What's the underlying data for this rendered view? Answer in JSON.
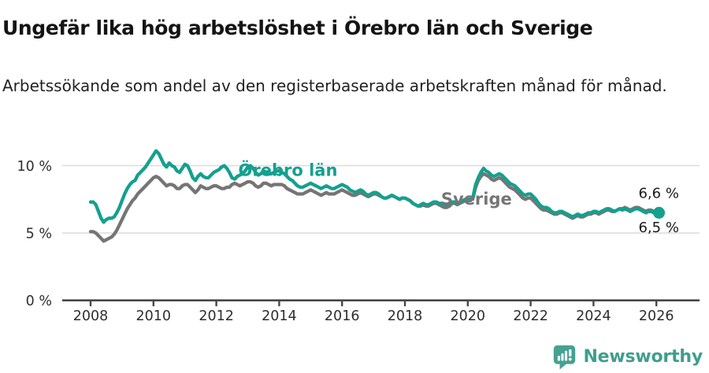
{
  "header": {
    "title": "Ungefär lika hög arbetslöshet i Örebro län och Sverige",
    "subtitle": "Arbetssökande som andel av den registerbaserade arbetskraften månad för månad."
  },
  "chart_data": {
    "type": "line",
    "title": "Ungefär lika hög arbetslöshet i Örebro län och Sverige",
    "xlabel": "",
    "ylabel": "",
    "unit": "%",
    "grid": "horizontal",
    "x_start": 2008,
    "frequency": "monthly",
    "x_start_label": "2008-01",
    "x_end_label": "2026-02",
    "ylim": [
      0,
      11.8
    ],
    "y_ticks": [
      0,
      5,
      10
    ],
    "y_tick_labels": [
      "0 %",
      "5 %",
      "10 %"
    ],
    "x_ticks": [
      2008,
      2010,
      2012,
      2014,
      2016,
      2018,
      2020,
      2022,
      2024,
      2026
    ],
    "x_tick_labels": [
      "2008",
      "2010",
      "2012",
      "2014",
      "2016",
      "2018",
      "2020",
      "2022",
      "2024",
      "2026"
    ],
    "colors": {
      "orebro": "#14a08f",
      "sverige": "#757575",
      "grid": "#dcdcdc",
      "axis": "#474747",
      "label_text": "#1a1a1a"
    },
    "series": [
      {
        "name": "Örebro län",
        "color": "#14a08f",
        "end_dot": true,
        "end_label": "6,5 %",
        "values": [
          7.3,
          7.3,
          7.1,
          6.6,
          6.1,
          5.8,
          6.0,
          6.1,
          6.1,
          6.2,
          6.5,
          6.9,
          7.4,
          7.9,
          8.3,
          8.6,
          8.8,
          8.9,
          9.3,
          9.5,
          9.7,
          9.9,
          10.2,
          10.5,
          10.8,
          11.1,
          10.9,
          10.5,
          10.1,
          9.9,
          10.2,
          10.0,
          9.9,
          9.6,
          9.5,
          9.8,
          10.1,
          10.0,
          9.6,
          9.1,
          8.9,
          9.2,
          9.4,
          9.2,
          9.1,
          9.1,
          9.3,
          9.5,
          9.6,
          9.7,
          9.9,
          10.0,
          9.8,
          9.5,
          9.1,
          9.0,
          9.2,
          9.3,
          9.4,
          9.6,
          9.9,
          10.0,
          9.8,
          9.5,
          9.3,
          9.4,
          9.6,
          9.5,
          9.4,
          9.4,
          9.5,
          9.6,
          9.6,
          9.5,
          9.4,
          9.2,
          9.0,
          8.9,
          8.7,
          8.5,
          8.4,
          8.4,
          8.5,
          8.6,
          8.7,
          8.6,
          8.5,
          8.4,
          8.3,
          8.4,
          8.5,
          8.4,
          8.3,
          8.3,
          8.4,
          8.5,
          8.6,
          8.5,
          8.4,
          8.2,
          8.1,
          8.0,
          8.1,
          8.2,
          8.1,
          7.9,
          7.8,
          7.9,
          8.0,
          8.0,
          7.9,
          7.7,
          7.6,
          7.6,
          7.7,
          7.8,
          7.7,
          7.6,
          7.5,
          7.6,
          7.6,
          7.5,
          7.4,
          7.2,
          7.1,
          7.0,
          7.1,
          7.2,
          7.1,
          7.1,
          7.2,
          7.3,
          7.3,
          7.2,
          7.2,
          7.1,
          7.1,
          7.2,
          7.3,
          7.3,
          7.2,
          7.3,
          7.4,
          7.5,
          7.5,
          7.5,
          7.7,
          8.6,
          9.1,
          9.5,
          9.8,
          9.6,
          9.5,
          9.3,
          9.2,
          9.3,
          9.4,
          9.3,
          9.1,
          8.9,
          8.7,
          8.6,
          8.5,
          8.3,
          8.1,
          7.9,
          7.8,
          7.9,
          7.9,
          7.7,
          7.5,
          7.2,
          7.0,
          6.9,
          6.9,
          6.8,
          6.6,
          6.5,
          6.5,
          6.6,
          6.6,
          6.5,
          6.4,
          6.3,
          6.2,
          6.3,
          6.4,
          6.3,
          6.3,
          6.4,
          6.5,
          6.5,
          6.6,
          6.6,
          6.5,
          6.6,
          6.7,
          6.8,
          6.8,
          6.7,
          6.6,
          6.7,
          6.8,
          6.7,
          6.8,
          6.7,
          6.6,
          6.7,
          6.8,
          6.8,
          6.7,
          6.6,
          6.5,
          6.6,
          6.6,
          6.5,
          6.5,
          6.5
        ]
      },
      {
        "name": "Sverige",
        "color": "#757575",
        "end_dot": false,
        "end_label": "6,6 %",
        "values": [
          5.1,
          5.1,
          5.0,
          4.8,
          4.6,
          4.4,
          4.5,
          4.6,
          4.7,
          4.9,
          5.2,
          5.6,
          6.0,
          6.4,
          6.8,
          7.1,
          7.4,
          7.6,
          7.9,
          8.1,
          8.3,
          8.5,
          8.7,
          8.9,
          9.1,
          9.2,
          9.1,
          8.9,
          8.7,
          8.5,
          8.6,
          8.6,
          8.5,
          8.3,
          8.3,
          8.5,
          8.6,
          8.6,
          8.4,
          8.2,
          8.0,
          8.2,
          8.5,
          8.4,
          8.3,
          8.3,
          8.4,
          8.5,
          8.5,
          8.4,
          8.3,
          8.3,
          8.4,
          8.4,
          8.6,
          8.7,
          8.6,
          8.5,
          8.6,
          8.7,
          8.8,
          8.8,
          8.7,
          8.5,
          8.4,
          8.5,
          8.7,
          8.7,
          8.6,
          8.5,
          8.6,
          8.6,
          8.6,
          8.6,
          8.5,
          8.3,
          8.2,
          8.1,
          8.0,
          7.9,
          7.9,
          7.9,
          8.0,
          8.1,
          8.2,
          8.1,
          8.0,
          7.9,
          7.8,
          7.9,
          8.0,
          7.9,
          7.9,
          7.9,
          8.0,
          8.1,
          8.2,
          8.1,
          8.0,
          7.9,
          7.8,
          7.8,
          7.9,
          8.0,
          7.9,
          7.8,
          7.7,
          7.8,
          7.9,
          7.9,
          7.8,
          7.7,
          7.6,
          7.6,
          7.7,
          7.8,
          7.7,
          7.6,
          7.5,
          7.6,
          7.6,
          7.5,
          7.4,
          7.2,
          7.1,
          7.0,
          7.0,
          7.1,
          7.0,
          7.0,
          7.1,
          7.2,
          7.2,
          7.1,
          7.0,
          6.9,
          6.9,
          7.0,
          7.2,
          7.2,
          7.1,
          7.2,
          7.3,
          7.4,
          7.4,
          7.4,
          7.6,
          8.4,
          8.9,
          9.2,
          9.4,
          9.3,
          9.2,
          9.0,
          8.9,
          9.0,
          9.1,
          9.0,
          8.8,
          8.6,
          8.4,
          8.3,
          8.2,
          8.0,
          7.8,
          7.6,
          7.5,
          7.6,
          7.6,
          7.4,
          7.2,
          7.0,
          6.8,
          6.7,
          6.7,
          6.6,
          6.5,
          6.4,
          6.4,
          6.5,
          6.5,
          6.4,
          6.3,
          6.2,
          6.1,
          6.2,
          6.3,
          6.2,
          6.2,
          6.3,
          6.4,
          6.4,
          6.5,
          6.5,
          6.4,
          6.5,
          6.6,
          6.7,
          6.7,
          6.6,
          6.6,
          6.7,
          6.8,
          6.8,
          6.9,
          6.8,
          6.7,
          6.8,
          6.9,
          6.9,
          6.8,
          6.7,
          6.6,
          6.7,
          6.7,
          6.6,
          6.6,
          6.6
        ]
      }
    ],
    "annotations": [
      {
        "text": "Örebro län",
        "x": 2012.7,
        "y": 9.25,
        "color": "#14a08f",
        "weight": "bold",
        "anchor": "start",
        "size": 21
      },
      {
        "text": "Sverige",
        "x": 2019.15,
        "y": 7.1,
        "color": "#757575",
        "weight": "bold",
        "anchor": "start",
        "size": 21
      },
      {
        "text": "6,6 %",
        "x": 2026.72,
        "y": 7.6,
        "color": "#1a1a1a",
        "weight": "normal",
        "anchor": "end",
        "size": 18
      },
      {
        "text": "6,5 %",
        "x": 2026.72,
        "y": 5.05,
        "color": "#1a1a1a",
        "weight": "normal",
        "anchor": "end",
        "size": 18
      }
    ]
  },
  "footer": {
    "brand": "Newsworthy",
    "logo_icon": "bar-chart-speech-bubble-icon",
    "brand_color": "#3f9e8e"
  }
}
